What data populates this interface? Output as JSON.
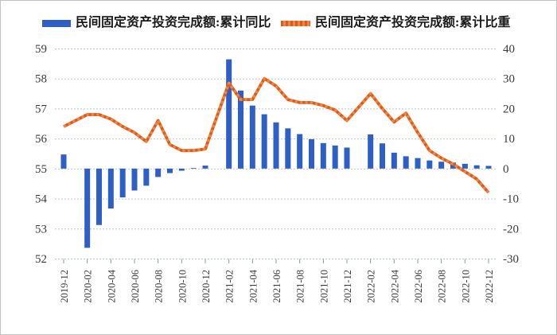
{
  "chart_data": {
    "type": "combo-bar-line",
    "title": "",
    "legend_position": "top",
    "grid": "horizontal-dotted",
    "x": [
      "2019-12",
      "2020-01",
      "2020-02",
      "2020-03",
      "2020-04",
      "2020-05",
      "2020-06",
      "2020-07",
      "2020-08",
      "2020-09",
      "2020-10",
      "2020-11",
      "2020-12",
      "2021-01",
      "2021-02",
      "2021-03",
      "2021-04",
      "2021-05",
      "2021-06",
      "2021-07",
      "2021-08",
      "2021-09",
      "2021-10",
      "2021-11",
      "2021-12",
      "2022-01",
      "2022-02",
      "2022-03",
      "2022-04",
      "2022-05",
      "2022-06",
      "2022-07",
      "2022-08",
      "2022-09",
      "2022-10",
      "2022-11",
      "2022-12"
    ],
    "x_label_every": 2,
    "x_tick_labels": [
      "2019-12",
      "2020-02",
      "2020-04",
      "2020-06",
      "2020-08",
      "2020-10",
      "2020-12",
      "2021-02",
      "2021-04",
      "2021-06",
      "2021-08",
      "2021-10",
      "2021-12",
      "2022-02",
      "2022-04",
      "2022-06",
      "2022-08",
      "2022-10",
      "2022-12"
    ],
    "series": [
      {
        "name": "民间固定资产投资完成额:累计同比",
        "type": "bar",
        "axis": "right",
        "color": "#2e5fc6",
        "values": [
          4.7,
          null,
          -26.4,
          -18.8,
          -13.3,
          -9.6,
          -7.3,
          -5.7,
          -2.8,
          -1.5,
          -0.7,
          0.2,
          1.0,
          null,
          36.4,
          26.0,
          21.0,
          18.1,
          15.4,
          13.4,
          11.5,
          9.8,
          8.5,
          7.7,
          7.0,
          null,
          11.4,
          8.4,
          5.3,
          4.1,
          3.5,
          2.7,
          2.3,
          2.0,
          1.6,
          1.1,
          0.9
        ]
      },
      {
        "name": "民间固定资产投资完成额:累计比重",
        "type": "line",
        "axis": "left",
        "color": "#dc5a1c",
        "dash_color": "#f2853d",
        "values": [
          56.4,
          null,
          56.8,
          56.8,
          56.65,
          56.4,
          56.2,
          55.9,
          56.6,
          55.8,
          55.6,
          55.6,
          55.65,
          null,
          57.85,
          57.3,
          57.3,
          58.0,
          57.75,
          57.3,
          57.2,
          57.2,
          57.1,
          56.95,
          56.6,
          null,
          57.5,
          57.0,
          56.55,
          56.85,
          56.2,
          55.6,
          55.35,
          55.15,
          54.9,
          54.65,
          54.2
        ]
      }
    ],
    "left_axis": {
      "min": 52,
      "max": 59,
      "ticks": [
        59,
        58,
        57,
        56,
        55,
        54,
        53,
        52
      ]
    },
    "right_axis": {
      "min": -30,
      "max": 40,
      "ticks": [
        40,
        30,
        20,
        10,
        0,
        -10,
        -20,
        -30
      ]
    },
    "baseline_right_value": 0
  },
  "style_colors": {
    "bar": "#2e5fc6",
    "line_dark": "#dc5a1c",
    "line_light": "#f2853d",
    "gridline": "#b6c8dc",
    "tick": "#8e9aa8",
    "axis_text": "#3d3d3d",
    "legend_text": "#1a1a1a",
    "background": "#ffffff",
    "border": "#c2c2c2"
  }
}
